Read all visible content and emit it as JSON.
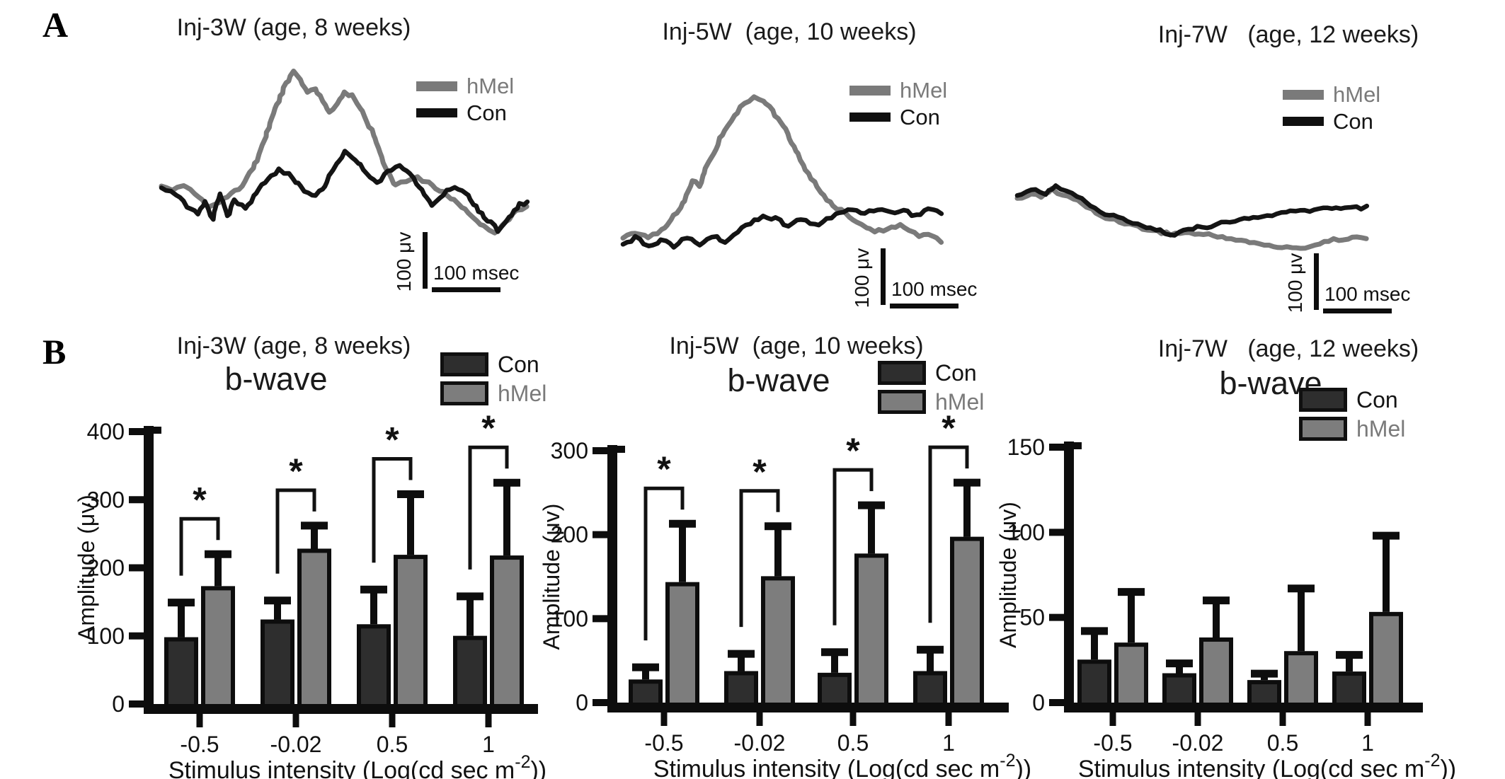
{
  "panel_labels": {
    "a": "A",
    "b": "B"
  },
  "colors": {
    "hmel": "#7a7a7a",
    "con": "#141414",
    "hmel_bar_fill": "#7d7d7d",
    "con_bar_fill": "#2e2e2e",
    "axis": "#0d0d0d",
    "background": "#ffffff"
  },
  "chart_data": [
    {
      "id": "a-inj3w",
      "type": "line",
      "title": "Inj-3W (age, 8 weeks)",
      "scalebar": {
        "v": "100 μv",
        "h": "100 msec"
      },
      "units": "normalized waveform coordinates (x: 0-1 time, y: 0-1 inverted amplitude); scale bar = 100 μv / 100 msec",
      "series": [
        {
          "name": "hMel",
          "points": [
            [
              0,
              0.7
            ],
            [
              0.03,
              0.72
            ],
            [
              0.06,
              0.69
            ],
            [
              0.1,
              0.76
            ],
            [
              0.13,
              0.83
            ],
            [
              0.16,
              0.8
            ],
            [
              0.19,
              0.74
            ],
            [
              0.22,
              0.7
            ],
            [
              0.25,
              0.6
            ],
            [
              0.28,
              0.44
            ],
            [
              0.31,
              0.25
            ],
            [
              0.34,
              0.1
            ],
            [
              0.36,
              0.03
            ],
            [
              0.38,
              0.08
            ],
            [
              0.4,
              0.15
            ],
            [
              0.42,
              0.12
            ],
            [
              0.44,
              0.2
            ],
            [
              0.46,
              0.26
            ],
            [
              0.48,
              0.22
            ],
            [
              0.5,
              0.15
            ],
            [
              0.52,
              0.17
            ],
            [
              0.55,
              0.26
            ],
            [
              0.58,
              0.4
            ],
            [
              0.61,
              0.58
            ],
            [
              0.64,
              0.7
            ],
            [
              0.67,
              0.67
            ],
            [
              0.7,
              0.65
            ],
            [
              0.73,
              0.68
            ],
            [
              0.77,
              0.74
            ],
            [
              0.81,
              0.8
            ],
            [
              0.85,
              0.88
            ],
            [
              0.88,
              0.94
            ],
            [
              0.91,
              0.97
            ],
            [
              0.94,
              0.91
            ],
            [
              0.97,
              0.85
            ],
            [
              1,
              0.82
            ]
          ]
        },
        {
          "name": "Con",
          "points": [
            [
              0,
              0.71
            ],
            [
              0.04,
              0.75
            ],
            [
              0.07,
              0.82
            ],
            [
              0.1,
              0.87
            ],
            [
              0.12,
              0.79
            ],
            [
              0.14,
              0.89
            ],
            [
              0.16,
              0.74
            ],
            [
              0.18,
              0.88
            ],
            [
              0.2,
              0.78
            ],
            [
              0.23,
              0.83
            ],
            [
              0.26,
              0.74
            ],
            [
              0.29,
              0.66
            ],
            [
              0.32,
              0.6
            ],
            [
              0.35,
              0.63
            ],
            [
              0.38,
              0.71
            ],
            [
              0.41,
              0.76
            ],
            [
              0.44,
              0.72
            ],
            [
              0.47,
              0.6
            ],
            [
              0.5,
              0.5
            ],
            [
              0.53,
              0.54
            ],
            [
              0.56,
              0.62
            ],
            [
              0.59,
              0.68
            ],
            [
              0.62,
              0.62
            ],
            [
              0.65,
              0.57
            ],
            [
              0.68,
              0.63
            ],
            [
              0.71,
              0.73
            ],
            [
              0.74,
              0.81
            ],
            [
              0.77,
              0.75
            ],
            [
              0.8,
              0.7
            ],
            [
              0.83,
              0.74
            ],
            [
              0.86,
              0.82
            ],
            [
              0.89,
              0.9
            ],
            [
              0.92,
              0.96
            ],
            [
              0.95,
              0.89
            ],
            [
              0.98,
              0.81
            ],
            [
              1,
              0.79
            ]
          ]
        }
      ]
    },
    {
      "id": "a-inj5w",
      "type": "line",
      "title": "Inj-5W  (age, 10 weeks)",
      "scalebar": {
        "v": "100 μv",
        "h": "100 msec"
      },
      "units": "normalized waveform coordinates; scale bar = 100 μv / 100 msec",
      "series": [
        {
          "name": "hMel",
          "points": [
            [
              0,
              0.93
            ],
            [
              0.04,
              0.9
            ],
            [
              0.08,
              0.92
            ],
            [
              0.12,
              0.88
            ],
            [
              0.15,
              0.82
            ],
            [
              0.18,
              0.74
            ],
            [
              0.2,
              0.66
            ],
            [
              0.22,
              0.56
            ],
            [
              0.24,
              0.6
            ],
            [
              0.26,
              0.48
            ],
            [
              0.29,
              0.36
            ],
            [
              0.32,
              0.24
            ],
            [
              0.35,
              0.15
            ],
            [
              0.38,
              0.08
            ],
            [
              0.41,
              0.03
            ],
            [
              0.44,
              0.05
            ],
            [
              0.47,
              0.12
            ],
            [
              0.51,
              0.24
            ],
            [
              0.55,
              0.4
            ],
            [
              0.59,
              0.55
            ],
            [
              0.63,
              0.66
            ],
            [
              0.67,
              0.74
            ],
            [
              0.71,
              0.79
            ],
            [
              0.75,
              0.85
            ],
            [
              0.79,
              0.89
            ],
            [
              0.83,
              0.87
            ],
            [
              0.87,
              0.85
            ],
            [
              0.9,
              0.88
            ],
            [
              0.93,
              0.92
            ],
            [
              0.96,
              0.9
            ],
            [
              1,
              0.95
            ]
          ]
        },
        {
          "name": "Con",
          "points": [
            [
              0,
              0.97
            ],
            [
              0.04,
              0.93
            ],
            [
              0.08,
              0.98
            ],
            [
              0.12,
              0.94
            ],
            [
              0.16,
              0.98
            ],
            [
              0.2,
              0.93
            ],
            [
              0.24,
              0.97
            ],
            [
              0.28,
              0.92
            ],
            [
              0.32,
              0.95
            ],
            [
              0.36,
              0.89
            ],
            [
              0.4,
              0.83
            ],
            [
              0.44,
              0.79
            ],
            [
              0.48,
              0.81
            ],
            [
              0.52,
              0.85
            ],
            [
              0.56,
              0.81
            ],
            [
              0.6,
              0.85
            ],
            [
              0.64,
              0.81
            ],
            [
              0.68,
              0.77
            ],
            [
              0.72,
              0.75
            ],
            [
              0.76,
              0.77
            ],
            [
              0.8,
              0.74
            ],
            [
              0.84,
              0.77
            ],
            [
              0.88,
              0.75
            ],
            [
              0.92,
              0.79
            ],
            [
              0.96,
              0.74
            ],
            [
              1,
              0.77
            ]
          ]
        }
      ]
    },
    {
      "id": "a-inj7w",
      "type": "line",
      "title": "Inj-7W   (age, 12 weeks)",
      "scalebar": {
        "v": "100 μv",
        "h": "100 msec"
      },
      "units": "normalized waveform coordinates; scale bar = 100 μv / 100 msec",
      "series": [
        {
          "name": "hMel",
          "points": [
            [
              0,
              0.3
            ],
            [
              0.04,
              0.24
            ],
            [
              0.07,
              0.28
            ],
            [
              0.1,
              0.18
            ],
            [
              0.13,
              0.25
            ],
            [
              0.16,
              0.3
            ],
            [
              0.2,
              0.42
            ],
            [
              0.24,
              0.55
            ],
            [
              0.28,
              0.6
            ],
            [
              0.32,
              0.66
            ],
            [
              0.36,
              0.72
            ],
            [
              0.4,
              0.76
            ],
            [
              0.44,
              0.8
            ],
            [
              0.48,
              0.78
            ],
            [
              0.52,
              0.8
            ],
            [
              0.56,
              0.82
            ],
            [
              0.6,
              0.85
            ],
            [
              0.64,
              0.89
            ],
            [
              0.68,
              0.93
            ],
            [
              0.72,
              0.96
            ],
            [
              0.76,
              0.99
            ],
            [
              0.8,
              1.0
            ],
            [
              0.84,
              0.97
            ],
            [
              0.88,
              0.91
            ],
            [
              0.92,
              0.87
            ],
            [
              0.96,
              0.85
            ],
            [
              1,
              0.86
            ]
          ]
        },
        {
          "name": "Con",
          "points": [
            [
              0,
              0.26
            ],
            [
              0.04,
              0.18
            ],
            [
              0.08,
              0.23
            ],
            [
              0.11,
              0.12
            ],
            [
              0.14,
              0.2
            ],
            [
              0.17,
              0.27
            ],
            [
              0.21,
              0.4
            ],
            [
              0.25,
              0.52
            ],
            [
              0.29,
              0.57
            ],
            [
              0.33,
              0.63
            ],
            [
              0.37,
              0.7
            ],
            [
              0.41,
              0.76
            ],
            [
              0.45,
              0.8
            ],
            [
              0.49,
              0.74
            ],
            [
              0.53,
              0.7
            ],
            [
              0.57,
              0.67
            ],
            [
              0.61,
              0.63
            ],
            [
              0.65,
              0.59
            ],
            [
              0.69,
              0.57
            ],
            [
              0.73,
              0.53
            ],
            [
              0.77,
              0.5
            ],
            [
              0.81,
              0.48
            ],
            [
              0.85,
              0.46
            ],
            [
              0.89,
              0.44
            ],
            [
              0.94,
              0.42
            ],
            [
              1,
              0.43
            ]
          ]
        }
      ]
    },
    {
      "id": "b-inj3w",
      "type": "bar",
      "title": "Inj-3W (age, 8 weeks)",
      "subtitle": "b-wave",
      "ylabel": "Amplitude (μv)",
      "xlabel": {
        "pre": "Stimulus intensity (Log(cd sec m",
        "sup": "-2",
        "post": "))",
        "display": "Stimulus intensity (Log(cd sec m-2))"
      },
      "ylim": [
        0,
        400
      ],
      "yticks": [
        0,
        100,
        200,
        300,
        400
      ],
      "categories": [
        "-0.5",
        "-0.02",
        "0.5",
        "1"
      ],
      "series": [
        {
          "name": "Con",
          "values": [
            95,
            121,
            114,
            97
          ],
          "errors": [
            54,
            31,
            54,
            61
          ]
        },
        {
          "name": "hMel",
          "values": [
            170,
            225,
            216,
            215
          ],
          "errors": [
            50,
            37,
            92,
            110
          ]
        }
      ],
      "significance": [
        true,
        true,
        true,
        true
      ],
      "sig_symbol": "*",
      "legend_position": "top-right",
      "grid": false
    },
    {
      "id": "b-inj5w",
      "type": "bar",
      "title": "Inj-5W  (age, 10 weeks)",
      "subtitle": "b-wave",
      "ylabel": "Amplitude (μv)",
      "xlabel": {
        "pre": "Stimulus intensity (Log(cd sec m",
        "sup": "-2",
        "post": "))",
        "display": "Stimulus intensity (Log(cd sec m-2))"
      },
      "ylim": [
        0,
        300
      ],
      "yticks": [
        0,
        100,
        200,
        300
      ],
      "categories": [
        "-0.5",
        "-0.02",
        "0.5",
        "1"
      ],
      "series": [
        {
          "name": "Con",
          "values": [
            25,
            35,
            33,
            35
          ],
          "errors": [
            17,
            23,
            27,
            28
          ]
        },
        {
          "name": "hMel",
          "values": [
            141,
            148,
            175,
            195
          ],
          "errors": [
            72,
            62,
            60,
            67
          ]
        }
      ],
      "significance": [
        true,
        true,
        true,
        true
      ],
      "sig_symbol": "*",
      "legend_position": "top-right",
      "grid": false
    },
    {
      "id": "b-inj7w",
      "type": "bar",
      "title": "Inj-7W   (age, 12 weeks)",
      "subtitle": "b-wave",
      "ylabel": "Amplitude (μv)",
      "xlabel": {
        "pre": "Stimulus intensity (Log(cd sec m",
        "sup": "-2",
        "post": "))",
        "display": "Stimulus intensity (Log(cd sec m-2))"
      },
      "ylim": [
        0,
        150
      ],
      "yticks": [
        0,
        50,
        100,
        150
      ],
      "categories": [
        "-0.5",
        "-0.02",
        "0.5",
        "1"
      ],
      "series": [
        {
          "name": "Con",
          "values": [
            24,
            16,
            12,
            17
          ],
          "errors": [
            18,
            7,
            5,
            11
          ]
        },
        {
          "name": "hMel",
          "values": [
            34,
            37,
            29,
            52
          ],
          "errors": [
            31,
            23,
            38,
            46
          ]
        }
      ],
      "significance": [
        false,
        false,
        false,
        false
      ],
      "sig_symbol": "*",
      "legend_position": "top-right",
      "grid": false
    }
  ]
}
